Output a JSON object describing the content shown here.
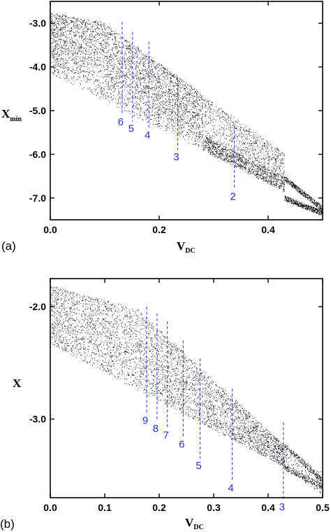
{
  "chart_data": [
    {
      "type": "scatter",
      "panel_label": "(a)",
      "xlabel": "V",
      "xlabel_sub": "DC",
      "ylabel": "X",
      "ylabel_sub": "min",
      "xlim": [
        0.0,
        0.5
      ],
      "ylim": [
        -7.5,
        -2.5
      ],
      "xticks": [
        "0.0",
        "0.2",
        "0.4"
      ],
      "xtick_values": [
        0.0,
        0.2,
        0.4
      ],
      "yticks": [
        "-3.0",
        "-4.0",
        "-5.0",
        "-6.0",
        "-7.0"
      ],
      "ytick_values": [
        -3.0,
        -4.0,
        -5.0,
        -6.0,
        -7.0
      ],
      "markers": [
        {
          "label": "6",
          "x": 0.132,
          "y_top": -2.97,
          "y_bottom": -5.1
        },
        {
          "label": "5",
          "x": 0.151,
          "y_top": -3.2,
          "y_bottom": -5.25
        },
        {
          "label": "4",
          "x": 0.181,
          "y_top": -3.42,
          "y_bottom": -5.4
        },
        {
          "label": "3",
          "x": 0.234,
          "y_top": -4.28,
          "y_bottom": -5.9
        },
        {
          "label": "2",
          "x": 0.338,
          "y_top": -5.35,
          "y_bottom": -6.8
        }
      ],
      "description_of_points": "bifurcation diagram: chaotic band narrowing and descending with increasing V_DC, periodic windows marked"
    },
    {
      "type": "scatter",
      "panel_label": "(b)",
      "xlabel": "V",
      "xlabel_sub": "DC",
      "ylabel": "X",
      "ylabel_sub": "",
      "xlim": [
        0.0,
        0.5
      ],
      "ylim": [
        -3.7,
        -1.75
      ],
      "xticks": [
        "0.0",
        "0.1",
        "0.2",
        "0.3",
        "0.4",
        "0.5"
      ],
      "xtick_values": [
        0.0,
        0.1,
        0.2,
        0.3,
        0.4,
        0.5
      ],
      "yticks": [
        "-2.0",
        "-3.0"
      ],
      "ytick_values": [
        -2.0,
        -3.0
      ],
      "markers": [
        {
          "label": "9",
          "x": 0.177,
          "y_top": -2.0,
          "y_bottom": -2.95
        },
        {
          "label": "8",
          "x": 0.196,
          "y_top": -2.06,
          "y_bottom": -3.02
        },
        {
          "label": "7",
          "x": 0.215,
          "y_top": -2.13,
          "y_bottom": -3.08
        },
        {
          "label": "6",
          "x": 0.244,
          "y_top": -2.3,
          "y_bottom": -3.16
        },
        {
          "label": "5",
          "x": 0.275,
          "y_top": -2.46,
          "y_bottom": -3.35
        },
        {
          "label": "4",
          "x": 0.334,
          "y_top": -2.73,
          "y_bottom": -3.55
        },
        {
          "label": "3",
          "x": 0.428,
          "y_top": -3.03,
          "y_bottom": -3.72
        }
      ]
    }
  ],
  "colors": {
    "points": "#000000",
    "markers": "#3344dd",
    "marker_labels": "#2233cc"
  }
}
